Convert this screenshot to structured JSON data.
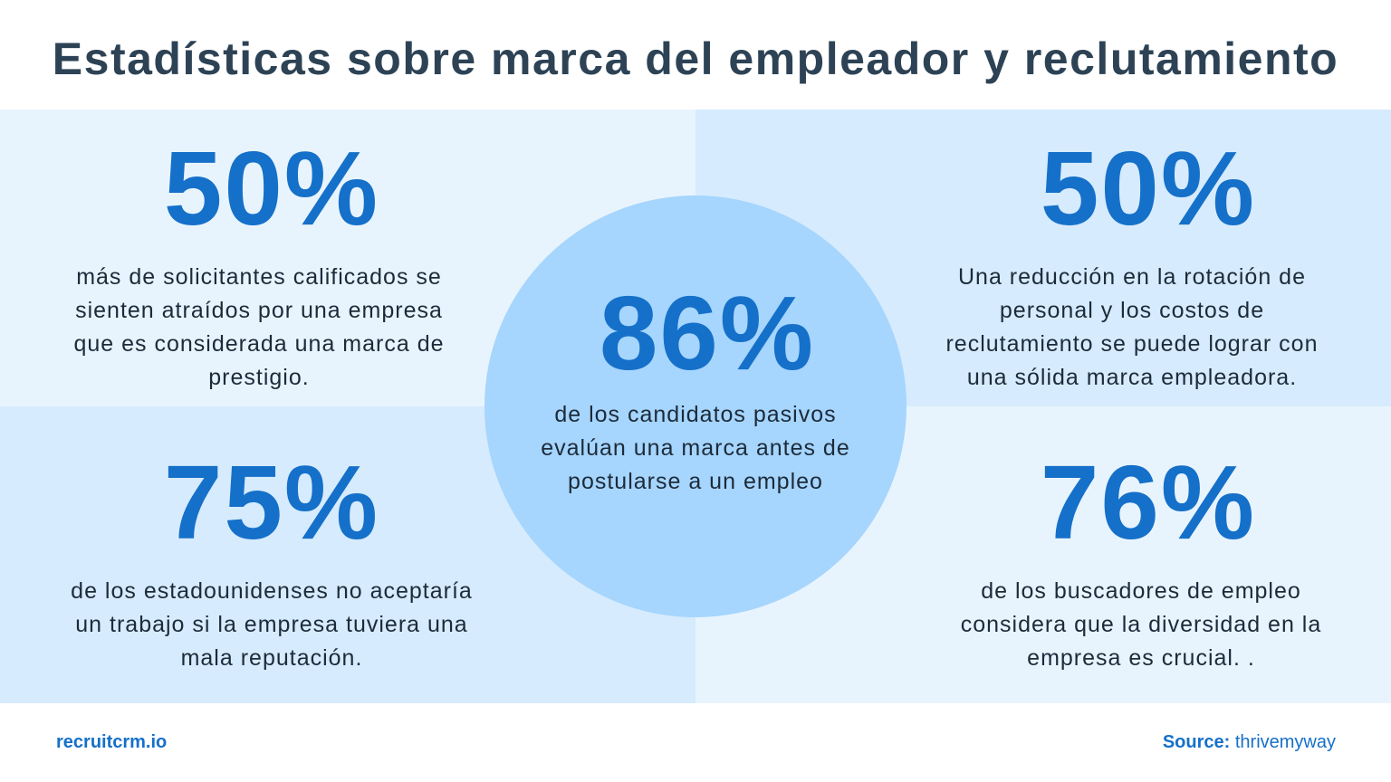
{
  "title": "Estadísticas sobre marca del empleador y reclutamiento",
  "colors": {
    "accent": "#1570c9",
    "title": "#2d4355",
    "panel_light": "#e8f4fd",
    "panel_mid": "#d6ebfd",
    "circle": "#a6d5fd"
  },
  "stats": [
    {
      "value": "50%",
      "text": "más de solicitantes calificados se sienten atraídos por una empresa que es considerada una marca de prestigio."
    },
    {
      "value": "50%",
      "text": "Una reducción en la rotación de personal y los costos de reclutamiento se puede lograr con una sólida marca empleadora."
    },
    {
      "value": "86%",
      "text": "de los candidatos pasivos evalúan una marca antes de postularse a un empleo"
    },
    {
      "value": "75%",
      "text": "de los estadounidenses no aceptaría un trabajo si la empresa tuviera una mala reputación."
    },
    {
      "value": "76%",
      "text": "de los buscadores de empleo considera que la diversidad en la empresa es crucial. ."
    }
  ],
  "footer": {
    "brand": "recruitcrm.io",
    "source_label": "Source:",
    "source": "thrivemyway"
  }
}
